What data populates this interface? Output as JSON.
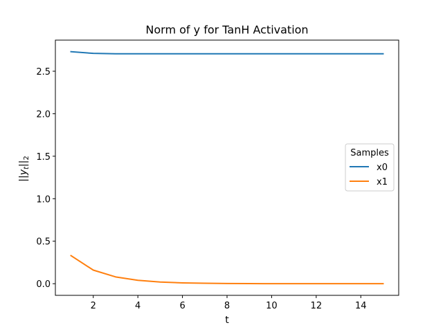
{
  "chart_data": {
    "type": "line",
    "title": "Norm of y for TanH Activation",
    "xlabel": "t",
    "ylabel": "||y_t||_2",
    "ylabel_display": "||yt||2",
    "x": [
      1,
      2,
      3,
      4,
      5,
      6,
      7,
      8,
      9,
      10,
      11,
      12,
      13,
      14,
      15
    ],
    "series": [
      {
        "name": "x0",
        "color": "#1f77b4",
        "values": [
          2.73,
          2.71,
          2.705,
          2.705,
          2.705,
          2.705,
          2.705,
          2.705,
          2.705,
          2.705,
          2.705,
          2.705,
          2.705,
          2.705,
          2.705
        ]
      },
      {
        "name": "x1",
        "color": "#ff7f0e",
        "values": [
          0.33,
          0.16,
          0.08,
          0.04,
          0.02,
          0.01,
          0.005,
          0.002,
          0.001,
          0.0005,
          0.0003,
          0.0002,
          0.0001,
          0.0001,
          0.0
        ]
      }
    ],
    "xlim": [
      0.3,
      15.7
    ],
    "ylim": [
      -0.137,
      2.866
    ],
    "xticks": [
      2,
      4,
      6,
      8,
      10,
      12,
      14
    ],
    "xtick_labels": [
      "2",
      "4",
      "6",
      "8",
      "10",
      "12",
      "14"
    ],
    "yticks": [
      0.0,
      0.5,
      1.0,
      1.5,
      2.0,
      2.5
    ],
    "ytick_labels": [
      "0.0",
      "0.5",
      "1.0",
      "1.5",
      "2.0",
      "2.5"
    ],
    "legend": {
      "title": "Samples",
      "position": "center-right"
    },
    "grid": false
  }
}
